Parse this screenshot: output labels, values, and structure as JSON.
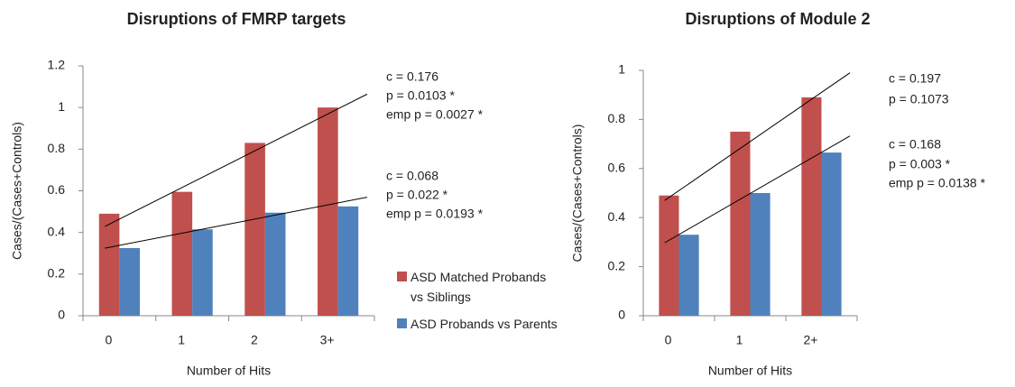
{
  "chart_data": [
    {
      "type": "bar",
      "title": "Disruptions of FMRP targets",
      "x_label": "Number of Hits",
      "y_label": "Cases/(Cases+Controls)",
      "categories": [
        "0",
        "1",
        "2",
        "3+"
      ],
      "series": [
        {
          "name": "ASD Matched  Probands vs Siblings",
          "color": "#c0504d",
          "values": [
            0.49,
            0.595,
            0.83,
            1.0
          ]
        },
        {
          "name": "ASD Probands vs Parents",
          "color": "#4f81bd",
          "values": [
            0.325,
            0.415,
            0.495,
            0.525
          ]
        }
      ],
      "ylim": [
        0,
        1.2
      ],
      "yticks": [
        0,
        0.2,
        0.4,
        0.6,
        0.8,
        1,
        1.2
      ],
      "trendlines": true,
      "legend": "right",
      "annotations": [
        [
          "c = 0.176",
          "p = 0.0103 *",
          "emp p = 0.0027 *"
        ],
        [
          "c = 0.068",
          "p = 0.022 *",
          "emp p = 0.0193 *"
        ]
      ]
    },
    {
      "type": "bar",
      "title": "Disruptions of Module 2",
      "x_label": "Number of Hits",
      "y_label": "Cases/(Cases+Controls)",
      "categories": [
        "0",
        "1",
        "2+"
      ],
      "series": [
        {
          "color": "#c0504d",
          "values": [
            0.49,
            0.75,
            0.89
          ]
        },
        {
          "color": "#4f81bd",
          "values": [
            0.33,
            0.5,
            0.665
          ]
        }
      ],
      "ylim": [
        0,
        1
      ],
      "yticks": [
        0,
        0.2,
        0.4,
        0.6,
        0.8,
        1
      ],
      "trendlines": true,
      "annotations": [
        [
          "c = 0.197",
          "p = 0.1073"
        ],
        [
          "c = 0.168",
          "p = 0.003 *",
          "emp p = 0.0138 *"
        ]
      ]
    }
  ]
}
